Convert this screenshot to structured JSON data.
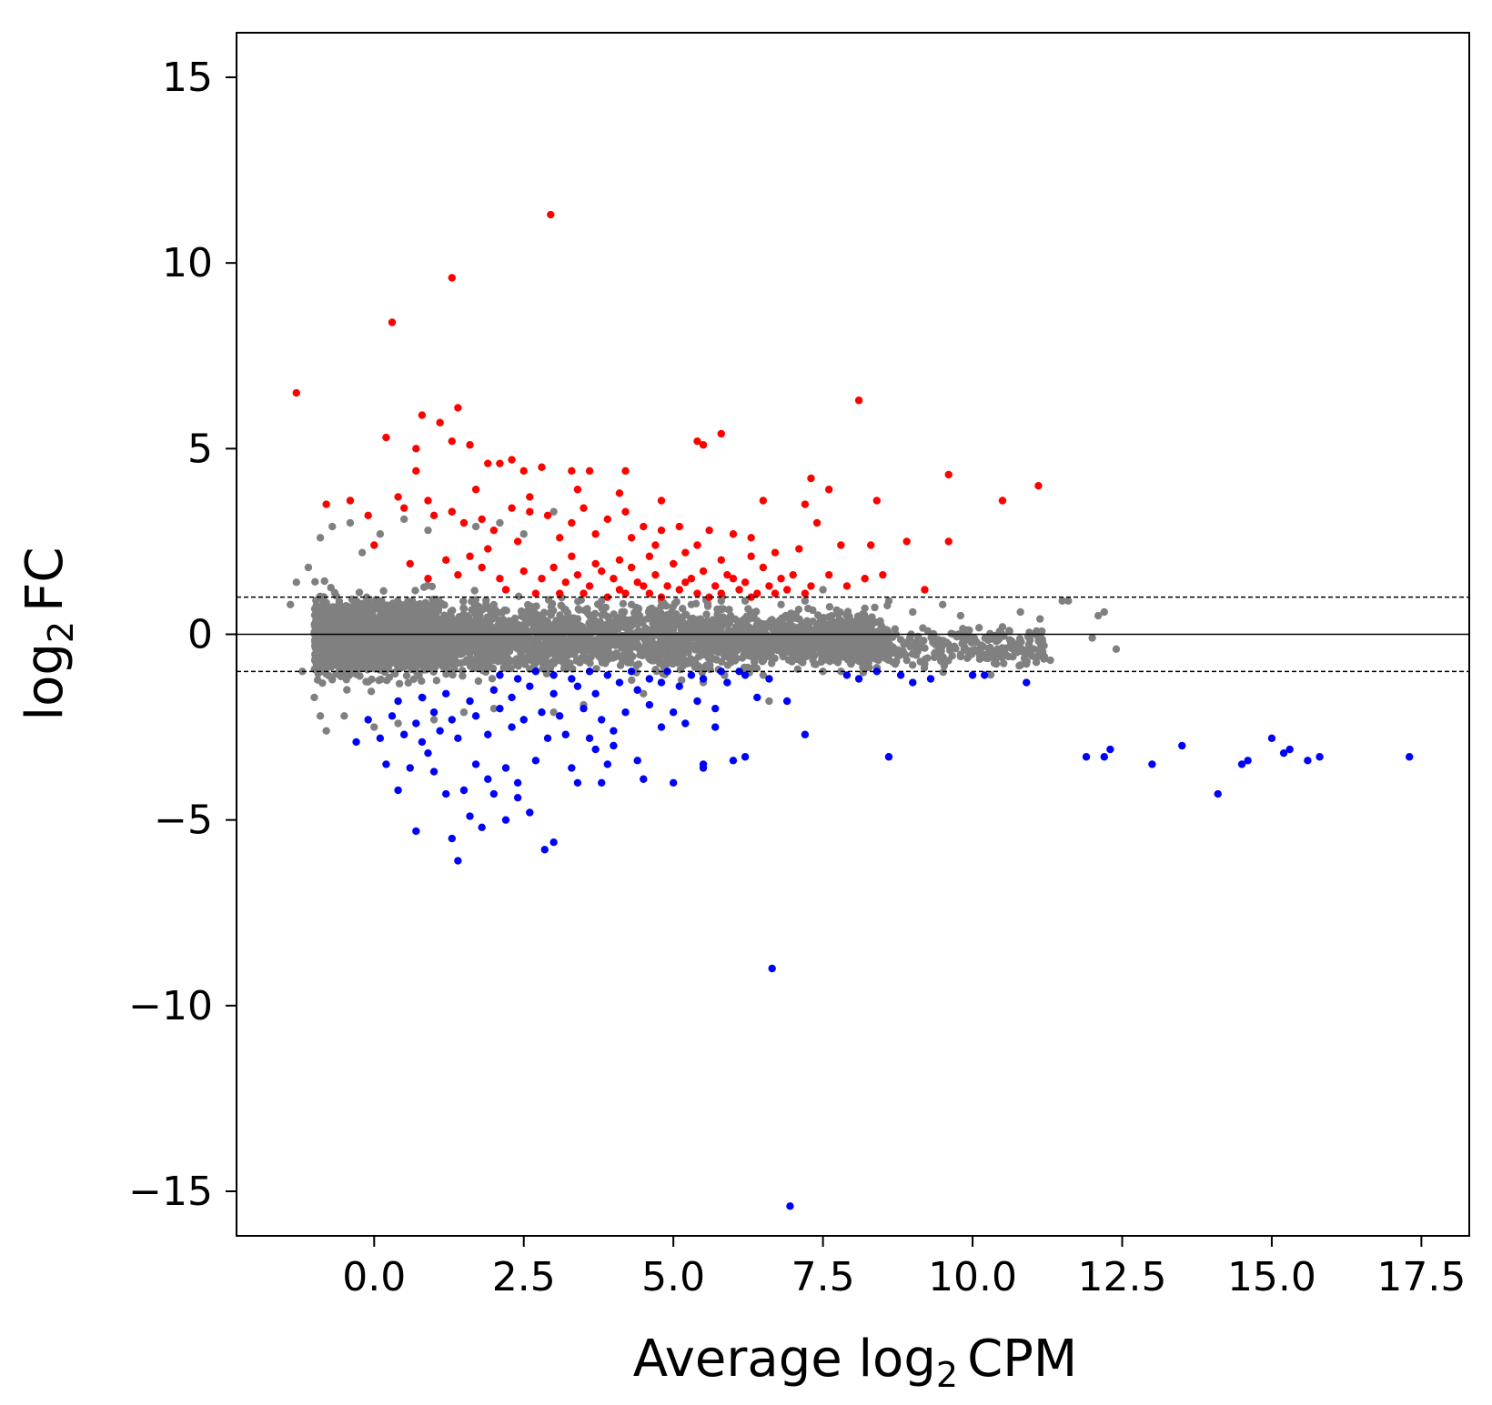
{
  "chart_data": {
    "type": "scatter",
    "title": "",
    "xlabel": {
      "pre": "Average log",
      "sub": "2",
      "post": "CPM"
    },
    "ylabel": {
      "pre": "log",
      "sub": "2",
      "post": "FC"
    },
    "xlim": [
      -2.3,
      18.3
    ],
    "ylim": [
      -16.2,
      16.2
    ],
    "x_ticks": [
      0.0,
      2.5,
      5.0,
      7.5,
      10.0,
      12.5,
      15.0,
      17.5
    ],
    "x_tick_labels": [
      "0.0",
      "2.5",
      "5.0",
      "7.5",
      "10.0",
      "12.5",
      "15.0",
      "17.5"
    ],
    "y_ticks": [
      15,
      10,
      5,
      0,
      -5,
      -10,
      -15
    ],
    "y_tick_labels": [
      "15",
      "10",
      "5",
      "0",
      "−5",
      "−10",
      "−15"
    ],
    "reference_lines": [
      {
        "y": 0,
        "style": "solid"
      },
      {
        "y": 1,
        "style": "dashed"
      },
      {
        "y": -1,
        "style": "dashed"
      }
    ],
    "colors": {
      "not_significant": "#808080",
      "up": "#ff0000",
      "down": "#0000ff"
    },
    "series": [
      {
        "key": "up",
        "color": "#ff0000",
        "points": [
          [
            -1.3,
            6.5
          ],
          [
            0.3,
            8.4
          ],
          [
            1.3,
            9.6
          ],
          [
            2.95,
            11.3
          ],
          [
            1.4,
            6.1
          ],
          [
            0.8,
            5.9
          ],
          [
            1.1,
            5.7
          ],
          [
            0.2,
            5.3
          ],
          [
            1.3,
            5.2
          ],
          [
            1.6,
            5.1
          ],
          [
            0.7,
            5.0
          ],
          [
            2.1,
            4.6
          ],
          [
            2.3,
            4.7
          ],
          [
            1.9,
            4.6
          ],
          [
            3.3,
            4.4
          ],
          [
            2.5,
            4.4
          ],
          [
            4.2,
            4.4
          ],
          [
            3.6,
            4.4
          ],
          [
            2.8,
            4.5
          ],
          [
            5.4,
            5.2
          ],
          [
            5.8,
            5.4
          ],
          [
            5.5,
            5.1
          ],
          [
            8.1,
            6.3
          ],
          [
            9.6,
            4.3
          ],
          [
            11.1,
            4.0
          ],
          [
            10.5,
            3.6
          ],
          [
            7.3,
            4.2
          ],
          [
            7.6,
            3.9
          ],
          [
            8.4,
            3.6
          ],
          [
            7.2,
            3.5
          ],
          [
            -0.8,
            3.5
          ],
          [
            -0.4,
            3.6
          ],
          [
            0.5,
            3.4
          ],
          [
            0.9,
            3.6
          ],
          [
            1.0,
            3.2
          ],
          [
            1.3,
            3.3
          ],
          [
            1.5,
            3.0
          ],
          [
            1.8,
            3.1
          ],
          [
            2.3,
            3.4
          ],
          [
            2.6,
            3.3
          ],
          [
            2.9,
            3.2
          ],
          [
            3.3,
            3.0
          ],
          [
            3.5,
            3.4
          ],
          [
            3.9,
            3.1
          ],
          [
            4.2,
            3.3
          ],
          [
            4.5,
            2.9
          ],
          [
            4.8,
            2.8
          ],
          [
            5.1,
            2.9
          ],
          [
            5.6,
            2.8
          ],
          [
            6.0,
            2.7
          ],
          [
            6.3,
            2.6
          ],
          [
            7.4,
            3.0
          ],
          [
            7.8,
            2.4
          ],
          [
            8.3,
            2.4
          ],
          [
            8.9,
            2.5
          ],
          [
            9.6,
            2.5
          ],
          [
            7.1,
            2.3
          ],
          [
            6.7,
            2.2
          ],
          [
            6.3,
            2.1
          ],
          [
            5.8,
            2.0
          ],
          [
            5.2,
            2.2
          ],
          [
            4.7,
            2.4
          ],
          [
            4.3,
            2.6
          ],
          [
            3.7,
            2.7
          ],
          [
            3.1,
            2.6
          ],
          [
            2.4,
            2.5
          ],
          [
            1.9,
            2.3
          ],
          [
            1.6,
            2.1
          ],
          [
            1.2,
            2.0
          ],
          [
            0.6,
            1.9
          ],
          [
            0.9,
            1.5
          ],
          [
            1.4,
            1.6
          ],
          [
            1.8,
            1.8
          ],
          [
            2.1,
            1.5
          ],
          [
            2.5,
            1.7
          ],
          [
            2.8,
            1.5
          ],
          [
            3.0,
            1.8
          ],
          [
            3.2,
            1.4
          ],
          [
            3.4,
            1.6
          ],
          [
            3.6,
            1.3
          ],
          [
            3.8,
            1.7
          ],
          [
            4.0,
            1.5
          ],
          [
            4.1,
            1.2
          ],
          [
            4.3,
            1.8
          ],
          [
            4.4,
            1.4
          ],
          [
            4.6,
            1.1
          ],
          [
            4.7,
            1.6
          ],
          [
            4.9,
            1.3
          ],
          [
            5.0,
            1.9
          ],
          [
            5.1,
            1.2
          ],
          [
            5.3,
            1.5
          ],
          [
            5.4,
            1.1
          ],
          [
            5.5,
            1.7
          ],
          [
            5.7,
            1.3
          ],
          [
            5.8,
            1.1
          ],
          [
            5.9,
            1.6
          ],
          [
            6.1,
            1.2
          ],
          [
            6.2,
            1.4
          ],
          [
            6.4,
            1.1
          ],
          [
            6.5,
            1.8
          ],
          [
            6.6,
            1.3
          ],
          [
            6.8,
            1.5
          ],
          [
            6.9,
            1.2
          ],
          [
            7.0,
            1.6
          ],
          [
            7.2,
            1.1
          ],
          [
            7.3,
            1.3
          ],
          [
            7.6,
            1.6
          ],
          [
            7.9,
            1.3
          ],
          [
            8.2,
            1.5
          ],
          [
            8.5,
            1.6
          ],
          [
            9.2,
            1.2
          ],
          [
            2.2,
            1.2
          ],
          [
            2.7,
            1.1
          ],
          [
            3.1,
            1.1
          ],
          [
            3.5,
            1.1
          ],
          [
            3.9,
            1.0
          ],
          [
            4.2,
            1.1
          ],
          [
            4.5,
            1.3
          ],
          [
            4.8,
            1.0
          ],
          [
            5.2,
            1.4
          ],
          [
            5.6,
            1.0
          ],
          [
            6.0,
            1.5
          ],
          [
            6.3,
            1.0
          ],
          [
            6.7,
            1.1
          ],
          [
            3.3,
            2.1
          ],
          [
            3.7,
            1.9
          ],
          [
            4.1,
            2.0
          ],
          [
            4.6,
            2.1
          ],
          [
            5.4,
            2.4
          ],
          [
            2.0,
            2.8
          ],
          [
            -0.1,
            3.2
          ],
          [
            0.0,
            2.4
          ],
          [
            1.7,
            3.9
          ],
          [
            2.6,
            3.7
          ],
          [
            3.4,
            3.9
          ],
          [
            4.1,
            3.8
          ],
          [
            4.8,
            3.6
          ],
          [
            6.5,
            3.6
          ],
          [
            0.4,
            3.7
          ],
          [
            0.7,
            4.4
          ]
        ]
      },
      {
        "key": "down",
        "color": "#0000ff",
        "points": [
          [
            6.95,
            -15.4
          ],
          [
            6.65,
            -9.0
          ],
          [
            1.4,
            -6.1
          ],
          [
            2.85,
            -5.8
          ],
          [
            3.0,
            -5.6
          ],
          [
            1.3,
            -5.5
          ],
          [
            0.7,
            -5.3
          ],
          [
            1.8,
            -5.2
          ],
          [
            2.2,
            -5.0
          ],
          [
            1.6,
            -4.9
          ],
          [
            2.6,
            -4.8
          ],
          [
            14.1,
            -4.3
          ],
          [
            0.4,
            -4.2
          ],
          [
            1.2,
            -4.3
          ],
          [
            1.5,
            -4.2
          ],
          [
            2.0,
            -4.3
          ],
          [
            2.4,
            -4.0
          ],
          [
            3.4,
            -4.0
          ],
          [
            3.8,
            -4.0
          ],
          [
            5.0,
            -4.0
          ],
          [
            4.5,
            -3.9
          ],
          [
            0.2,
            -3.5
          ],
          [
            0.6,
            -3.6
          ],
          [
            1.0,
            -3.7
          ],
          [
            1.7,
            -3.5
          ],
          [
            2.2,
            -3.6
          ],
          [
            2.7,
            -3.4
          ],
          [
            3.3,
            -3.6
          ],
          [
            3.9,
            -3.5
          ],
          [
            4.4,
            -3.4
          ],
          [
            5.5,
            -3.5
          ],
          [
            6.0,
            -3.4
          ],
          [
            6.2,
            -3.3
          ],
          [
            8.6,
            -3.3
          ],
          [
            11.9,
            -3.3
          ],
          [
            12.2,
            -3.3
          ],
          [
            12.3,
            -3.1
          ],
          [
            13.0,
            -3.5
          ],
          [
            13.5,
            -3.0
          ],
          [
            14.5,
            -3.5
          ],
          [
            14.6,
            -3.4
          ],
          [
            15.0,
            -2.8
          ],
          [
            15.2,
            -3.2
          ],
          [
            15.3,
            -3.1
          ],
          [
            15.6,
            -3.4
          ],
          [
            15.8,
            -3.3
          ],
          [
            17.3,
            -3.3
          ],
          [
            7.2,
            -2.7
          ],
          [
            -0.3,
            -2.9
          ],
          [
            0.1,
            -2.8
          ],
          [
            0.5,
            -2.7
          ],
          [
            0.8,
            -2.9
          ],
          [
            1.1,
            -2.6
          ],
          [
            1.4,
            -2.8
          ],
          [
            1.9,
            -2.7
          ],
          [
            2.3,
            -2.5
          ],
          [
            2.9,
            -2.8
          ],
          [
            3.2,
            -2.7
          ],
          [
            3.6,
            -2.8
          ],
          [
            4.0,
            -2.6
          ],
          [
            4.8,
            -2.5
          ],
          [
            5.2,
            -2.4
          ],
          [
            5.7,
            -2.5
          ],
          [
            -0.1,
            -2.3
          ],
          [
            0.3,
            -2.2
          ],
          [
            0.7,
            -2.4
          ],
          [
            1.0,
            -2.1
          ],
          [
            1.3,
            -2.3
          ],
          [
            1.7,
            -2.2
          ],
          [
            2.1,
            -2.0
          ],
          [
            2.5,
            -2.3
          ],
          [
            2.8,
            -2.1
          ],
          [
            3.1,
            -2.2
          ],
          [
            3.5,
            -2.0
          ],
          [
            3.8,
            -2.3
          ],
          [
            4.2,
            -2.1
          ],
          [
            4.6,
            -1.9
          ],
          [
            5.0,
            -2.1
          ],
          [
            5.4,
            -1.8
          ],
          [
            5.7,
            -2.0
          ],
          [
            6.4,
            -1.7
          ],
          [
            6.9,
            -1.8
          ],
          [
            0.4,
            -1.8
          ],
          [
            0.8,
            -1.7
          ],
          [
            1.2,
            -1.6
          ],
          [
            1.6,
            -1.8
          ],
          [
            2.0,
            -1.5
          ],
          [
            2.3,
            -1.7
          ],
          [
            2.6,
            -1.4
          ],
          [
            3.0,
            -1.6
          ],
          [
            3.4,
            -1.4
          ],
          [
            3.7,
            -1.6
          ],
          [
            4.1,
            -1.3
          ],
          [
            4.4,
            -1.5
          ],
          [
            4.8,
            -1.3
          ],
          [
            5.1,
            -1.4
          ],
          [
            5.5,
            -1.2
          ],
          [
            5.9,
            -1.3
          ],
          [
            6.2,
            -1.1
          ],
          [
            6.6,
            -1.2
          ],
          [
            2.1,
            -1.1
          ],
          [
            2.4,
            -1.2
          ],
          [
            2.7,
            -1.0
          ],
          [
            3.0,
            -1.1
          ],
          [
            3.3,
            -1.2
          ],
          [
            3.6,
            -1.0
          ],
          [
            3.9,
            -1.1
          ],
          [
            4.3,
            -1.0
          ],
          [
            4.6,
            -1.2
          ],
          [
            4.9,
            -1.0
          ],
          [
            5.3,
            -1.1
          ],
          [
            5.8,
            -1.0
          ],
          [
            6.1,
            -1.0
          ],
          [
            7.9,
            -1.1
          ],
          [
            8.1,
            -1.2
          ],
          [
            8.4,
            -1.0
          ],
          [
            8.8,
            -1.1
          ],
          [
            9.0,
            -1.3
          ],
          [
            9.3,
            -1.2
          ],
          [
            10.0,
            -1.1
          ],
          [
            10.2,
            -1.1
          ],
          [
            10.9,
            -1.3
          ],
          [
            4.0,
            -3.0
          ],
          [
            2.4,
            -4.4
          ],
          [
            1.9,
            -3.9
          ],
          [
            0.9,
            -3.2
          ],
          [
            3.7,
            -3.1
          ],
          [
            5.5,
            -3.6
          ]
        ]
      }
    ],
    "gray_points": [
      [
        -1.4,
        0.8
      ],
      [
        -1.3,
        1.4
      ],
      [
        -1.1,
        1.8
      ],
      [
        -0.9,
        2.6
      ],
      [
        -0.7,
        2.9
      ],
      [
        -0.4,
        3.0
      ],
      [
        -0.2,
        2.2
      ],
      [
        0.1,
        2.7
      ],
      [
        0.5,
        3.1
      ],
      [
        0.9,
        2.8
      ],
      [
        1.3,
        3.3
      ],
      [
        1.7,
        2.9
      ],
      [
        2.1,
        3.0
      ],
      [
        2.5,
        2.7
      ],
      [
        3.0,
        3.3
      ],
      [
        -1.2,
        -1.0
      ],
      [
        -1.0,
        -1.7
      ],
      [
        -0.9,
        -2.2
      ],
      [
        -0.8,
        -2.6
      ],
      [
        -0.5,
        -2.2
      ],
      [
        0.0,
        -2.5
      ],
      [
        0.4,
        -2.4
      ],
      [
        1.0,
        -2.3
      ],
      [
        1.5,
        -2.1
      ],
      [
        2.0,
        -2.0
      ],
      [
        2.5,
        -2.3
      ],
      [
        3.0,
        -2.1
      ],
      [
        3.5,
        -1.9
      ],
      [
        4.5,
        -1.6
      ],
      [
        5.5,
        -1.3
      ],
      [
        6.5,
        -1.1
      ],
      [
        7.5,
        -1.0
      ],
      [
        8.4,
        -0.9
      ],
      [
        6.6,
        -1.8
      ],
      [
        7.8,
        -1.0
      ],
      [
        11.5,
        0.9
      ],
      [
        11.6,
        0.9
      ],
      [
        12.1,
        0.5
      ],
      [
        12.2,
        0.6
      ],
      [
        12.0,
        -0.1
      ],
      [
        12.4,
        -0.4
      ],
      [
        11.3,
        -0.7
      ],
      [
        10.8,
        0.6
      ],
      [
        11.0,
        0.0
      ],
      [
        10.5,
        0.2
      ],
      [
        9.8,
        0.5
      ],
      [
        9.5,
        0.8
      ],
      [
        9.0,
        0.6
      ],
      [
        8.6,
        0.9
      ],
      [
        8.2,
        0.7
      ],
      [
        7.5,
        1.2
      ],
      [
        7.2,
        0.9
      ],
      [
        6.8,
        0.8
      ],
      [
        6.2,
        0.9
      ],
      [
        5.8,
        0.9
      ],
      [
        5.3,
        0.8
      ],
      [
        4.8,
        0.9
      ],
      [
        4.3,
        0.8
      ],
      [
        3.8,
        0.9
      ],
      [
        9.8,
        -0.6
      ],
      [
        10.3,
        -0.5
      ],
      [
        10.6,
        -0.6
      ],
      [
        10.9,
        -0.8
      ],
      [
        11.2,
        -0.6
      ],
      [
        9.2,
        -0.8
      ],
      [
        8.9,
        -0.7
      ]
    ]
  }
}
